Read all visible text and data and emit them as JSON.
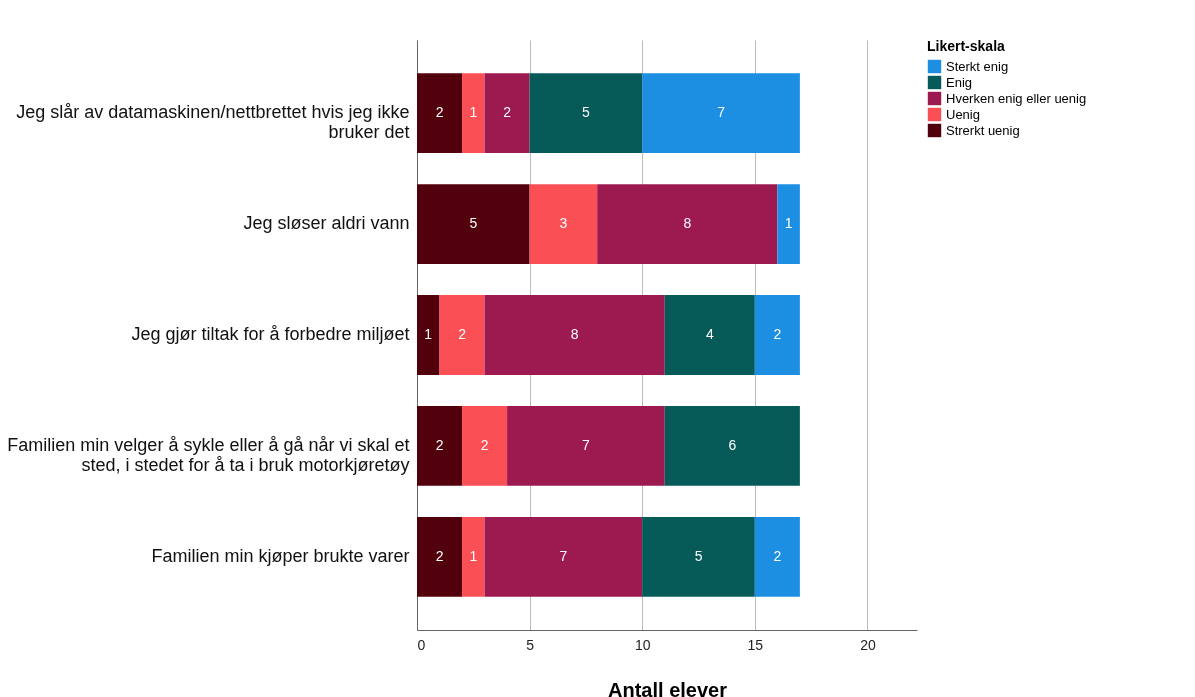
{
  "chart_data": {
    "type": "bar",
    "orientation": "horizontal",
    "stacked": true,
    "xlabel": "Antall elever",
    "legend_title": "Likert-skala",
    "legend": "top right",
    "grid": "x",
    "data_labels": true,
    "categories": [
      "Jeg slår av datamaskinen/nettbrettet hvis jeg ikke bruker det",
      "Jeg sløser aldri vann",
      "Jeg gjør tiltak for å forbedre miljøet",
      "Familien min velger å sykle eller å gå når vi skal et sted, i stedet for å ta i bruk motorkjøretøy",
      "Familien min kjøper brukte varer"
    ],
    "xlim": [
      0,
      22.2
    ],
    "xticks": [
      0,
      5,
      10,
      15,
      20
    ],
    "series": [
      {
        "name": "Strerkt uenig",
        "color": "#52000c",
        "values": [
          2,
          5,
          1,
          2,
          2
        ]
      },
      {
        "name": "Uenig",
        "color": "#fb4f56",
        "values": [
          1,
          3,
          2,
          2,
          1
        ]
      },
      {
        "name": "Hverken enig eller uenig",
        "color": "#9c1a50",
        "values": [
          2,
          8,
          8,
          7,
          7
        ]
      },
      {
        "name": "Enig",
        "color": "#065b59",
        "values": [
          5,
          null,
          4,
          6,
          5
        ]
      },
      {
        "name": "Sterkt enig",
        "color": "#1c8fe3",
        "values": [
          7,
          1,
          2,
          null,
          2
        ]
      }
    ]
  }
}
